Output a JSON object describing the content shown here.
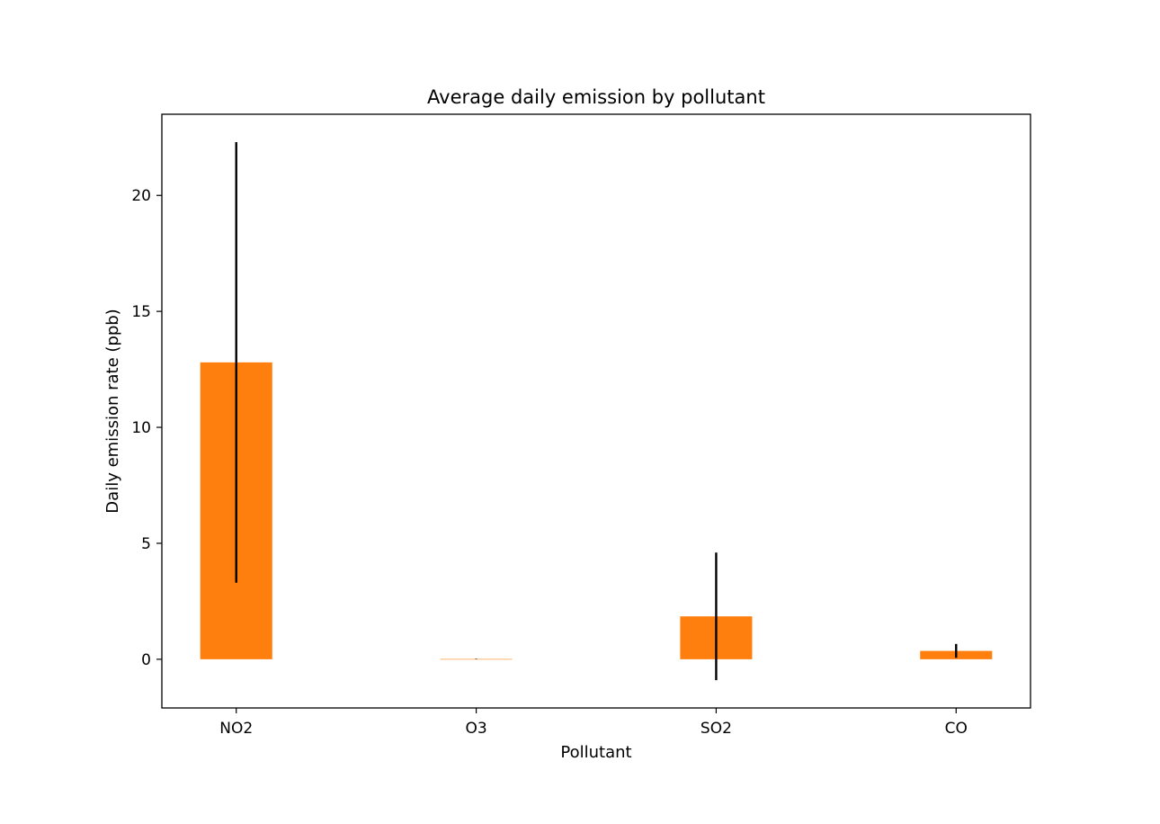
{
  "chart_data": {
    "type": "bar",
    "title": "Average daily emission by pollutant",
    "xlabel": "Pollutant",
    "ylabel": "Daily emission rate (ppb)",
    "categories": [
      "NO2",
      "O3",
      "SO2",
      "CO"
    ],
    "values": [
      12.8,
      0.01,
      1.85,
      0.36
    ],
    "error": [
      9.5,
      0.01,
      2.75,
      0.3
    ],
    "ylim": [
      -2.1,
      23.5
    ],
    "yticks": [
      0,
      5,
      10,
      15,
      20
    ],
    "grid": false,
    "colors": {
      "bar": "#ff7f0e",
      "error": "#000000",
      "axis": "#000000"
    }
  }
}
